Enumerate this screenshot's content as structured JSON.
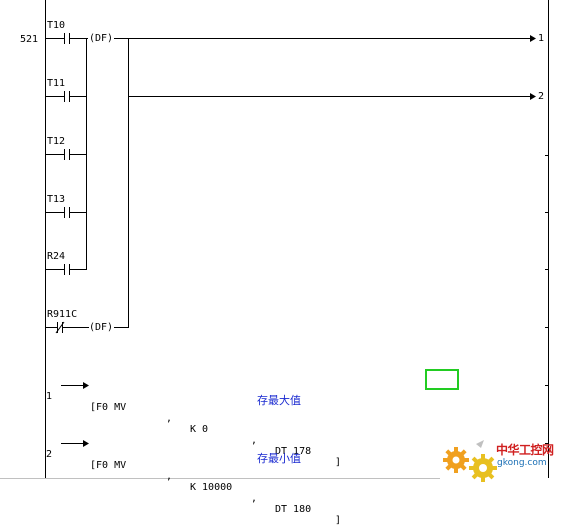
{
  "program": {
    "step_number": "521",
    "contacts": [
      {
        "name": "T10"
      },
      {
        "name": "T11"
      },
      {
        "name": "T12"
      },
      {
        "name": "T13"
      },
      {
        "name": "R24"
      },
      {
        "name": "R911C"
      }
    ],
    "df_label": "(DF)",
    "jump_outputs": [
      "1",
      "2"
    ],
    "instructions": [
      {
        "jump": "1",
        "opcode": "[F0 MV",
        "sep1": ",",
        "src": "K 0",
        "sep2": ",",
        "dst": "DT 178",
        "close": "]",
        "comment": "存最大值"
      },
      {
        "jump": "2",
        "opcode": "[F0 MV",
        "sep1": ",",
        "src": "K 10000",
        "sep2": ",",
        "dst": "DT 180",
        "close": "]",
        "comment": "存最小值"
      }
    ]
  },
  "watermark": {
    "chinese": "中华工控网",
    "url": "gkong.com"
  },
  "colors": {
    "wire": "#000000",
    "comment": "#1a2ad0",
    "selection": "#22cc22",
    "rail": "#808080"
  }
}
